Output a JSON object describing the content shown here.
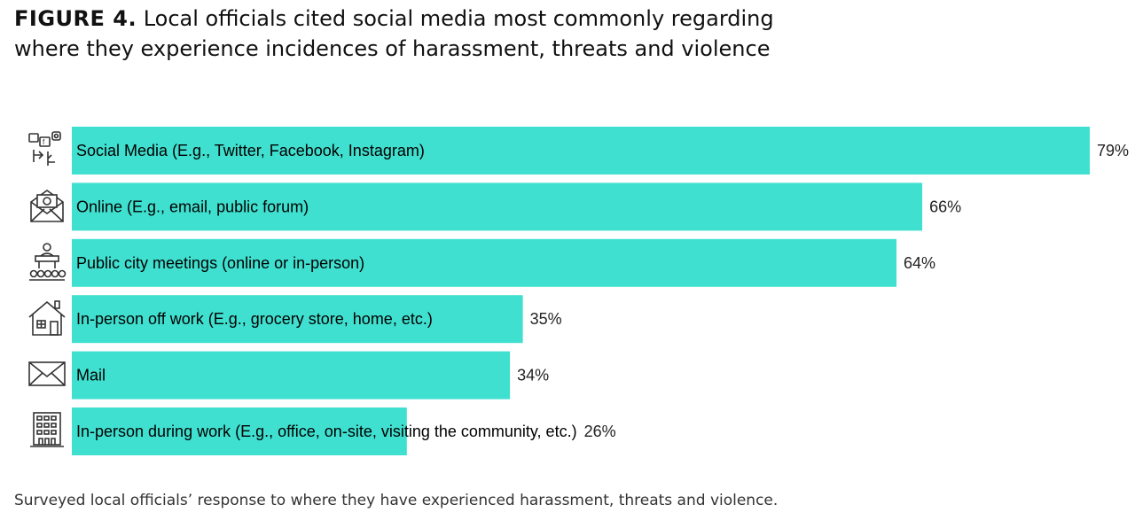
{
  "figure": {
    "number_label": "FIGURE 4.",
    "title_line1": "Local officials cited social media most commonly regarding",
    "title_line2": "where they experience incidences of harassment, threats and violence",
    "caption": "Surveyed local officials’ response to where they have experienced harassment, threats and violence."
  },
  "colors": {
    "bar": "#40e0d0",
    "icon_stroke": "#333333"
  },
  "icons": [
    "social-media-icon",
    "email-at-icon",
    "public-meeting-icon",
    "house-icon",
    "envelope-icon",
    "office-building-icon"
  ],
  "chart_data": {
    "type": "bar",
    "orientation": "horizontal",
    "categories": [
      "Social Media (E.g., Twitter, Facebook, Instagram)",
      "Online (E.g., email, public forum)",
      "Public city meetings (online or in-person)",
      "In-person off work (E.g., grocery store, home, etc.)",
      "Mail",
      "In-person during work (E.g., office, on-site, visiting the community, etc.)"
    ],
    "values": [
      79,
      66,
      64,
      35,
      34,
      26
    ],
    "value_labels": [
      "79%",
      "66%",
      "64%",
      "35%",
      "34%",
      "26%"
    ],
    "unit": "%",
    "xlim": [
      0,
      79
    ],
    "grid": false,
    "legend": "none"
  }
}
